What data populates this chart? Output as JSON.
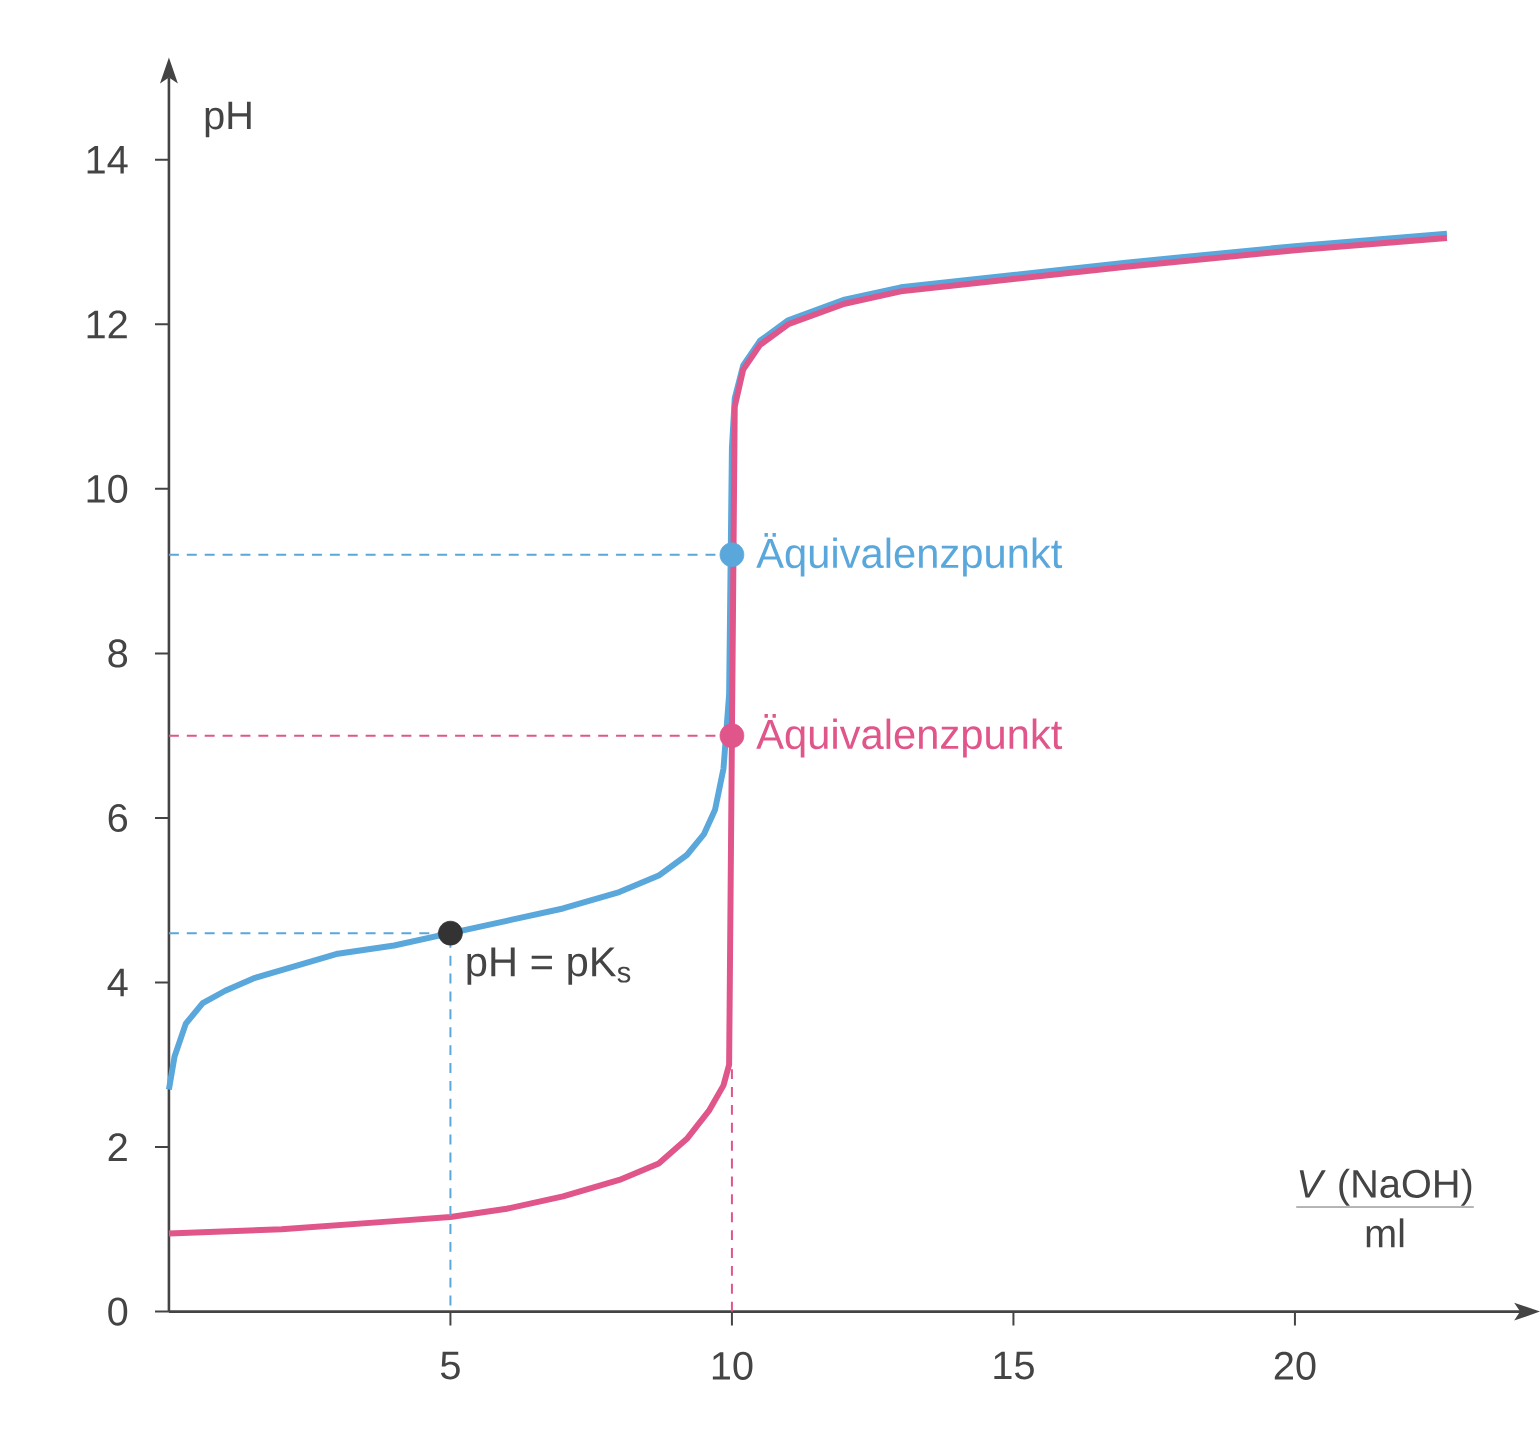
{
  "chart_data": {
    "type": "line",
    "xlabel": "*V* (NaOH)",
    "ylabel": "pH",
    "xlim": [
      0,
      24
    ],
    "ylim": [
      0,
      15
    ],
    "xticks": [
      5,
      10,
      15,
      20
    ],
    "yticks": [
      0,
      2,
      4,
      6,
      8,
      10,
      12,
      14
    ],
    "marker": "none",
    "line_style": "solid",
    "series": [
      {
        "color": "#5aa7dc",
        "x": [
          0,
          0.1,
          0.3,
          0.6,
          1,
          1.5,
          2,
          3,
          4,
          5,
          6,
          7,
          8,
          8.7,
          9.2,
          9.5,
          9.7,
          9.85,
          9.95,
          10,
          10.05,
          10.2,
          10.5,
          11,
          12,
          13,
          15,
          17,
          20,
          22.7
        ],
        "values": [
          2.7,
          3.1,
          3.5,
          3.75,
          3.9,
          4.05,
          4.15,
          4.35,
          4.45,
          4.6,
          4.75,
          4.9,
          5.1,
          5.3,
          5.55,
          5.8,
          6.1,
          6.6,
          7.5,
          10.5,
          11.1,
          11.5,
          11.8,
          12.05,
          12.3,
          12.45,
          12.6,
          12.75,
          12.95,
          13.1
        ]
      },
      {
        "color": "#e0558a",
        "x": [
          0,
          2,
          4,
          5,
          6,
          7,
          8,
          8.7,
          9.2,
          9.6,
          9.85,
          9.95,
          10,
          10.05,
          10.2,
          10.5,
          11,
          12,
          13,
          15,
          17,
          20,
          22.7
        ],
        "values": [
          0.95,
          1.0,
          1.1,
          1.15,
          1.25,
          1.4,
          1.6,
          1.8,
          2.1,
          2.45,
          2.75,
          3.0,
          7.0,
          11.0,
          11.45,
          11.75,
          12.0,
          12.25,
          12.4,
          12.55,
          12.7,
          12.9,
          13.05
        ]
      },
      {
        "color": "#5aa7dc",
        "line_style": "dashed",
        "x": [
          0,
          10
        ],
        "values": [
          9.2,
          9.2
        ]
      },
      {
        "color": "#e0558a",
        "line_style": "dashed",
        "x": [
          0,
          10
        ],
        "values": [
          7.0,
          7.0
        ]
      },
      {
        "color": "#5aa7dc",
        "line_style": "dashed",
        "x": [
          0,
          5,
          5
        ],
        "values": [
          4.6,
          4.6,
          0
        ]
      },
      {
        "color": "#e0558a",
        "line_style": "dashed",
        "x": [
          10,
          10
        ],
        "values": [
          0,
          3.0
        ]
      },
      {
        "type": "scatter",
        "marker": "circle",
        "color": "#5aa7dc",
        "x": [
          10
        ],
        "values": [
          9.2
        ]
      },
      {
        "type": "scatter",
        "marker": "circle",
        "color": "#e0558a",
        "x": [
          10
        ],
        "values": [
          7.0
        ]
      },
      {
        "type": "scatter",
        "marker": "circle",
        "color": "#333333",
        "x": [
          5
        ],
        "values": [
          4.6
        ]
      }
    ],
    "annotations": [
      "Äquivalenzpunkt",
      "Äquivalenzpunkt",
      "pH = pK$_{s}$",
      "ml"
    ]
  }
}
